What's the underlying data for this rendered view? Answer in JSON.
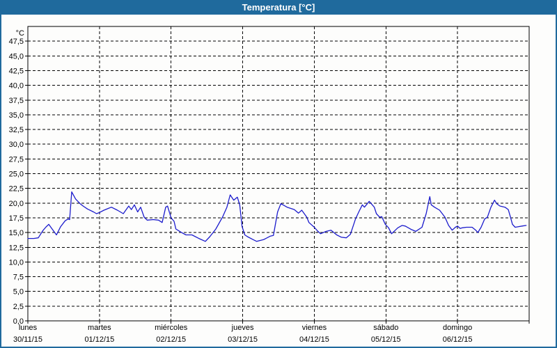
{
  "window": {
    "title": "Temperatura [°C]"
  },
  "colors": {
    "titlebar_bg": "#1f6a9d",
    "window_border": "#1f6a9d",
    "title_text": "#ffffff",
    "plot_bg": "#fdfdfc",
    "grid": "#000000",
    "axis": "#000000",
    "line": "#1b1bcc"
  },
  "chart_data": {
    "type": "line",
    "title": "Temperatura [°C]",
    "grid": "dashed",
    "y_axis": {
      "unit_label": "°C",
      "min": 0,
      "max": 50,
      "tick_step": 2.5,
      "tick_labels": [
        "0,0",
        "2,5",
        "5,0",
        "7,5",
        "10,0",
        "12,5",
        "15,0",
        "17,5",
        "20,0",
        "22,5",
        "25,0",
        "27,5",
        "30,0",
        "32,5",
        "35,0",
        "37,5",
        "40,0",
        "42,5",
        "45,0",
        "47,5"
      ]
    },
    "x_axis": {
      "hours_total": 168,
      "days": [
        {
          "name": "lunes",
          "date": "30/11/15"
        },
        {
          "name": "martes",
          "date": "01/12/15"
        },
        {
          "name": "miércoles",
          "date": "02/12/15"
        },
        {
          "name": "jueves",
          "date": "03/12/15"
        },
        {
          "name": "viernes",
          "date": "04/12/15"
        },
        {
          "name": "sábado",
          "date": "05/12/15"
        },
        {
          "name": "domingo",
          "date": "06/12/15"
        }
      ]
    },
    "series": [
      {
        "name": "Temperatura",
        "color": "#1b1bcc",
        "points": [
          [
            0,
            14.0
          ],
          [
            2,
            14.0
          ],
          [
            3.5,
            14.1
          ],
          [
            5,
            15.3
          ],
          [
            6,
            15.9
          ],
          [
            7,
            16.4
          ],
          [
            8,
            15.7
          ],
          [
            9.6,
            14.6
          ],
          [
            11,
            16.0
          ],
          [
            12.5,
            17.0
          ],
          [
            13.5,
            17.3
          ],
          [
            14,
            17.2
          ],
          [
            14.7,
            21.9
          ],
          [
            16,
            20.7
          ],
          [
            17.5,
            19.9
          ],
          [
            18.5,
            19.5
          ],
          [
            20,
            19.0
          ],
          [
            22,
            18.5
          ],
          [
            23,
            18.2
          ],
          [
            24,
            18.4
          ],
          [
            25.5,
            18.8
          ],
          [
            27,
            19.1
          ],
          [
            28,
            19.3
          ],
          [
            30,
            18.8
          ],
          [
            31,
            18.5
          ],
          [
            32,
            18.2
          ],
          [
            33.8,
            19.5
          ],
          [
            34.7,
            18.9
          ],
          [
            35.7,
            19.7
          ],
          [
            36.8,
            18.5
          ],
          [
            37.8,
            19.3
          ],
          [
            39,
            17.6
          ],
          [
            40,
            17.1
          ],
          [
            42,
            17.2
          ],
          [
            43.8,
            17.1
          ],
          [
            45,
            16.7
          ],
          [
            46.2,
            19.3
          ],
          [
            46.8,
            19.5
          ],
          [
            48,
            17.5
          ],
          [
            49,
            16.9
          ],
          [
            49.6,
            15.6
          ],
          [
            51.5,
            15.0
          ],
          [
            53,
            14.6
          ],
          [
            55,
            14.6
          ],
          [
            57.3,
            14.0
          ],
          [
            59.5,
            13.5
          ],
          [
            61,
            14.3
          ],
          [
            63,
            15.6
          ],
          [
            65.3,
            17.7
          ],
          [
            66.7,
            19.3
          ],
          [
            67.8,
            21.4
          ],
          [
            69,
            20.5
          ],
          [
            70.2,
            21.0
          ],
          [
            71,
            19.7
          ],
          [
            71.8,
            16.0
          ],
          [
            72.7,
            14.6
          ],
          [
            73.6,
            14.3
          ],
          [
            75.5,
            13.8
          ],
          [
            76.7,
            13.5
          ],
          [
            79,
            13.8
          ],
          [
            81.3,
            14.4
          ],
          [
            82.3,
            14.5
          ],
          [
            83,
            16.5
          ],
          [
            83.7,
            18.5
          ],
          [
            84.8,
            19.9
          ],
          [
            86.9,
            19.3
          ],
          [
            89.3,
            18.9
          ],
          [
            90.7,
            18.3
          ],
          [
            91.8,
            18.8
          ],
          [
            93.5,
            17.6
          ],
          [
            94.2,
            16.7
          ],
          [
            96,
            15.9
          ],
          [
            97.2,
            15.2
          ],
          [
            98.1,
            14.8
          ],
          [
            100,
            15.2
          ],
          [
            101.6,
            15.4
          ],
          [
            103.5,
            14.6
          ],
          [
            105.1,
            14.2
          ],
          [
            106.7,
            14.1
          ],
          [
            108.1,
            14.7
          ],
          [
            109.8,
            17.3
          ],
          [
            110.9,
            18.5
          ],
          [
            112.1,
            19.7
          ],
          [
            112.8,
            19.3
          ],
          [
            114.4,
            20.3
          ],
          [
            116.1,
            19.3
          ],
          [
            116.8,
            18.2
          ],
          [
            117.9,
            17.6
          ],
          [
            118.6,
            17.7
          ],
          [
            119.8,
            16.4
          ],
          [
            120.9,
            15.8
          ],
          [
            121.9,
            14.8
          ],
          [
            124,
            15.8
          ],
          [
            125.4,
            16.2
          ],
          [
            126.5,
            16.1
          ],
          [
            128.6,
            15.5
          ],
          [
            130,
            15.2
          ],
          [
            132.1,
            15.9
          ],
          [
            133.5,
            18.2
          ],
          [
            134.7,
            21.1
          ],
          [
            135.2,
            19.7
          ],
          [
            136.3,
            19.3
          ],
          [
            138,
            18.8
          ],
          [
            139.8,
            17.6
          ],
          [
            141,
            16.2
          ],
          [
            142.2,
            15.4
          ],
          [
            143.3,
            15.9
          ],
          [
            144,
            16.1
          ],
          [
            144.9,
            15.7
          ],
          [
            145.6,
            15.8
          ],
          [
            147,
            15.9
          ],
          [
            148.9,
            15.9
          ],
          [
            150.1,
            15.4
          ],
          [
            150.8,
            15.0
          ],
          [
            151.9,
            15.9
          ],
          [
            153.1,
            17.3
          ],
          [
            154,
            17.6
          ],
          [
            155.2,
            19.3
          ],
          [
            156.4,
            20.5
          ],
          [
            157.1,
            19.9
          ],
          [
            158.2,
            19.5
          ],
          [
            159.9,
            19.3
          ],
          [
            161,
            18.9
          ],
          [
            161.7,
            17.7
          ],
          [
            162.4,
            16.4
          ],
          [
            163.3,
            15.9
          ],
          [
            164.5,
            16.0
          ],
          [
            165.6,
            16.1
          ],
          [
            167,
            16.2
          ]
        ]
      }
    ]
  }
}
